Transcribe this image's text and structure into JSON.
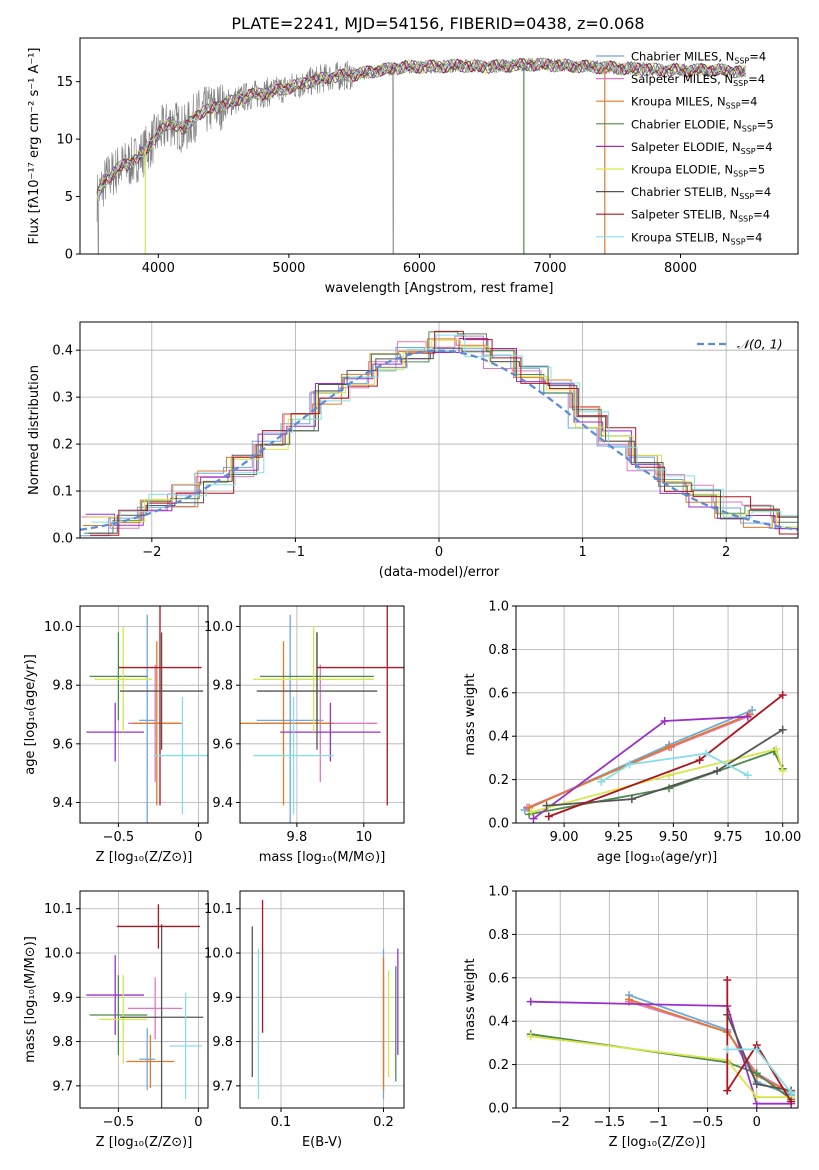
{
  "figure": {
    "title": "PLATE=2241, MJD=54156, FIBERID=0438, z=0.068"
  },
  "chart_data": [
    {
      "id": "spectrum",
      "type": "line",
      "title": "PLATE=2241, MJD=54156, FIBERID=0438, z=0.068",
      "xlabel": "wavelength [Angstrom, rest frame]",
      "ylabel": "Flux [fλ10⁻¹⁷ erg cm⁻² s⁻¹ A⁻¹]",
      "xlim": [
        3400,
        8900
      ],
      "ylim": [
        0,
        18.8
      ],
      "xticks": [
        4000,
        5000,
        6000,
        7000,
        8000
      ],
      "yticks": [
        0,
        5,
        10,
        15
      ],
      "grid": false,
      "legend_position": "top-right",
      "data_envelope": {
        "x": [
          3530,
          3600,
          3700,
          3800,
          3900,
          4000,
          4100,
          4200,
          4300,
          4500,
          4700,
          4900,
          5100,
          5300,
          5500,
          5700,
          5900,
          6100,
          6300,
          6500,
          6700,
          6900,
          7100,
          7300,
          7500,
          7700,
          7900,
          8100,
          8300,
          8500
        ],
        "y": [
          5.0,
          6.5,
          7.5,
          8.0,
          9.0,
          10.5,
          11.5,
          10.8,
          12.2,
          13.0,
          13.8,
          14.2,
          14.8,
          15.4,
          15.6,
          16.0,
          16.3,
          16.3,
          16.4,
          16.3,
          16.4,
          16.5,
          16.4,
          16.3,
          16.2,
          16.1,
          16.0,
          16.0,
          16.0,
          15.8
        ]
      },
      "series": [
        {
          "name": "Chabrier MILES, N_SSP=4",
          "color": "#6fa8dc"
        },
        {
          "name": "Salpeter MILES, N_SSP=4",
          "color": "#e377c2"
        },
        {
          "name": "Kroupa MILES, N_SSP=4",
          "color": "#e07b28"
        },
        {
          "name": "Chabrier ELODIE, N_SSP=5",
          "color": "#4d8a4d"
        },
        {
          "name": "Salpeter ELODIE, N_SSP=4",
          "color": "#9b30c9"
        },
        {
          "name": "Kroupa ELODIE, N_SSP=5",
          "color": "#d7e64a"
        },
        {
          "name": "Chabrier STELIB, N_SSP=4",
          "color": "#555555"
        },
        {
          "name": "Salpeter STELIB, N_SSP=4",
          "color": "#b0141e"
        },
        {
          "name": "Kroupa STELIB, N_SSP=4",
          "color": "#86dee8"
        }
      ]
    },
    {
      "id": "residuals",
      "type": "step",
      "xlabel": "(data-model)/error",
      "ylabel": "Normed distribution",
      "xlim": [
        -2.5,
        2.5
      ],
      "ylim": [
        0,
        0.46
      ],
      "xticks": [
        -2,
        -1,
        0,
        1,
        2
      ],
      "yticks": [
        0.0,
        0.1,
        0.2,
        0.3,
        0.4
      ],
      "grid": true,
      "legend_position": "top-right",
      "reference_curve": {
        "name": "𝒩(0, 1)",
        "mean": 0,
        "sigma": 1,
        "color": "#5b8bd9"
      },
      "bin_centers": [
        -2.4,
        -2.2,
        -2.0,
        -1.8,
        -1.6,
        -1.4,
        -1.2,
        -1.0,
        -0.8,
        -0.6,
        -0.4,
        -0.2,
        0.0,
        0.2,
        0.4,
        0.6,
        0.8,
        1.0,
        1.2,
        1.4,
        1.6,
        1.8,
        2.0,
        2.2,
        2.4
      ],
      "histogram_values": [
        0.03,
        0.045,
        0.075,
        0.09,
        0.12,
        0.155,
        0.205,
        0.245,
        0.31,
        0.34,
        0.37,
        0.395,
        0.415,
        0.41,
        0.385,
        0.345,
        0.315,
        0.255,
        0.21,
        0.16,
        0.12,
        0.09,
        0.065,
        0.045,
        0.03
      ]
    },
    {
      "id": "age-vs-Z",
      "type": "errorbar",
      "xlabel": "Z [log₁₀(Z/Z⊙)]",
      "ylabel": "age  [log₁₀(age/yr)]",
      "xlim": [
        -0.74,
        0.06
      ],
      "ylim": [
        9.33,
        10.07
      ],
      "xticks": [
        -0.5,
        0.0
      ],
      "yticks": [
        9.4,
        9.6,
        9.8,
        10.0
      ],
      "grid": true,
      "points": [
        {
          "color": "#6fa8dc",
          "x": -0.32,
          "xerr": 0.05,
          "y": 9.68,
          "yerr": 0.36
        },
        {
          "color": "#e377c2",
          "x": -0.27,
          "xerr": 0.17,
          "y": 9.67,
          "yerr": 0.2
        },
        {
          "color": "#e07b28",
          "x": -0.26,
          "xerr": 0.15,
          "y": 9.67,
          "yerr": 0.28
        },
        {
          "color": "#4d8a4d",
          "x": -0.5,
          "xerr": 0.18,
          "y": 9.83,
          "yerr": 0.15
        },
        {
          "color": "#9b30c9",
          "x": -0.52,
          "xerr": 0.18,
          "y": 9.64,
          "yerr": 0.1
        },
        {
          "color": "#d7e64a",
          "x": -0.47,
          "xerr": 0.18,
          "y": 9.82,
          "yerr": 0.18
        },
        {
          "color": "#555555",
          "x": -0.23,
          "xerr": 0.26,
          "y": 9.78,
          "yerr": 0.2
        },
        {
          "color": "#b0141e",
          "x": -0.24,
          "xerr": 0.26,
          "y": 9.86,
          "yerr": 0.47
        },
        {
          "color": "#86dee8",
          "x": -0.1,
          "xerr": 0.18,
          "y": 9.56,
          "yerr": 0.2
        }
      ]
    },
    {
      "id": "age-vs-mass",
      "type": "errorbar",
      "xlabel": "mass [log₁₀(M/M⊙)]",
      "ylabel": "",
      "xlim": [
        9.63,
        10.12
      ],
      "ylim": [
        9.33,
        10.07
      ],
      "xticks": [
        9.8,
        10.0
      ],
      "yticks": [
        9.4,
        9.6,
        9.8,
        10.0
      ],
      "grid": true,
      "points": [
        {
          "color": "#6fa8dc",
          "x": 9.78,
          "xerr": 0.1,
          "y": 9.68,
          "yerr": 0.36
        },
        {
          "color": "#e377c2",
          "x": 9.87,
          "xerr": 0.17,
          "y": 9.67,
          "yerr": 0.2
        },
        {
          "color": "#e07b28",
          "x": 9.76,
          "xerr": 0.15,
          "y": 9.67,
          "yerr": 0.28
        },
        {
          "color": "#4d8a4d",
          "x": 9.86,
          "xerr": 0.17,
          "y": 9.83,
          "yerr": 0.15
        },
        {
          "color": "#9b30c9",
          "x": 9.9,
          "xerr": 0.15,
          "y": 9.64,
          "yerr": 0.1
        },
        {
          "color": "#d7e64a",
          "x": 9.85,
          "xerr": 0.18,
          "y": 9.82,
          "yerr": 0.18
        },
        {
          "color": "#555555",
          "x": 9.86,
          "xerr": 0.18,
          "y": 9.78,
          "yerr": 0.2
        },
        {
          "color": "#b0141e",
          "x": 10.07,
          "xerr": 0.21,
          "y": 9.86,
          "yerr": 0.47
        },
        {
          "color": "#86dee8",
          "x": 9.79,
          "xerr": 0.12,
          "y": 9.56,
          "yerr": 0.2
        }
      ]
    },
    {
      "id": "mass-weight-vs-age",
      "type": "line",
      "xlabel": "age  [log₁₀(age/yr)]",
      "ylabel": "mass weight",
      "xlim": [
        8.78,
        10.07
      ],
      "ylim": [
        0,
        1
      ],
      "xticks": [
        9.0,
        9.25,
        9.5,
        9.75,
        10.0
      ],
      "xticklabels": [
        "9.00",
        "9.25",
        "9.50",
        "9.75",
        "10.00"
      ],
      "yticks": [
        0.0,
        0.2,
        0.4,
        0.6,
        0.8,
        1.0
      ],
      "grid": true,
      "series": [
        {
          "color": "#6fa8dc",
          "x": [
            8.82,
            9.48,
            9.86
          ],
          "y": [
            0.06,
            0.36,
            0.52
          ]
        },
        {
          "color": "#e377c2",
          "x": [
            8.83,
            9.49,
            9.84
          ],
          "y": [
            0.07,
            0.35,
            0.49
          ]
        },
        {
          "color": "#e07b28",
          "x": [
            8.84,
            9.48,
            9.85
          ],
          "y": [
            0.07,
            0.35,
            0.5
          ]
        },
        {
          "color": "#4d8a4d",
          "x": [
            8.84,
            9.48,
            9.96,
            10.0
          ],
          "y": [
            0.04,
            0.16,
            0.33,
            0.25
          ]
        },
        {
          "color": "#9b30c9",
          "x": [
            8.86,
            9.46,
            9.84
          ],
          "y": [
            0.02,
            0.47,
            0.49
          ]
        },
        {
          "color": "#d7e64a",
          "x": [
            8.85,
            9.48,
            9.97,
            10.0
          ],
          "y": [
            0.05,
            0.22,
            0.34,
            0.24
          ]
        },
        {
          "color": "#555555",
          "x": [
            8.92,
            9.31,
            9.7,
            10.0
          ],
          "y": [
            0.08,
            0.11,
            0.24,
            0.43
          ]
        },
        {
          "color": "#b0141e",
          "x": [
            8.93,
            9.62,
            10.0
          ],
          "y": [
            0.03,
            0.29,
            0.59
          ]
        },
        {
          "color": "#86dee8",
          "x": [
            9.17,
            9.3,
            9.65,
            9.84
          ],
          "y": [
            0.19,
            0.27,
            0.32,
            0.22
          ]
        }
      ]
    },
    {
      "id": "mass-vs-Z",
      "type": "errorbar",
      "xlabel": "Z [log₁₀(Z/Z⊙)]",
      "ylabel": "mass [log₁₀(M/M⊙)]",
      "xlim": [
        -0.74,
        0.06
      ],
      "ylim": [
        9.65,
        10.14
      ],
      "xticks": [
        -0.5,
        0.0
      ],
      "yticks": [
        9.7,
        9.8,
        9.9,
        10.0,
        10.1
      ],
      "grid": true,
      "points": [
        {
          "color": "#6fa8dc",
          "x": -0.32,
          "xerr": 0.05,
          "y": 9.76,
          "yerr": 0.07
        },
        {
          "color": "#e377c2",
          "x": -0.27,
          "xerr": 0.17,
          "y": 9.875,
          "yerr": 0.07
        },
        {
          "color": "#e07b28",
          "x": -0.3,
          "xerr": 0.15,
          "y": 9.755,
          "yerr": 0.06
        },
        {
          "color": "#4d8a4d",
          "x": -0.5,
          "xerr": 0.18,
          "y": 9.86,
          "yerr": 0.09
        },
        {
          "color": "#9b30c9",
          "x": -0.52,
          "xerr": 0.18,
          "y": 9.905,
          "yerr": 0.09
        },
        {
          "color": "#d7e64a",
          "x": -0.47,
          "xerr": 0.15,
          "y": 9.85,
          "yerr": 0.1
        },
        {
          "color": "#555555",
          "x": -0.23,
          "xerr": 0.26,
          "y": 9.855,
          "yerr": 0.21
        },
        {
          "color": "#b0141e",
          "x": -0.25,
          "xerr": 0.26,
          "y": 10.06,
          "yerr": 0.05
        },
        {
          "color": "#86dee8",
          "x": -0.08,
          "xerr": 0.1,
          "y": 9.79,
          "yerr": 0.12
        }
      ]
    },
    {
      "id": "mass-vs-ebv",
      "type": "errorbar",
      "xlabel": "E(B-V)",
      "ylabel": "",
      "xlim": [
        0.06,
        0.22
      ],
      "ylim": [
        9.65,
        10.14
      ],
      "xticks": [
        0.1,
        0.2
      ],
      "yticks": [
        9.7,
        9.8,
        9.9,
        10.0,
        10.1
      ],
      "grid": true,
      "points": [
        {
          "color": "#6fa8dc",
          "x": 0.2,
          "y": 9.84,
          "yerr": 0.17
        },
        {
          "color": "#e377c2",
          "x": 0.2,
          "y": 9.84,
          "yerr": 0.11
        },
        {
          "color": "#e07b28",
          "x": 0.2,
          "y": 9.84,
          "yerr": 0.15
        },
        {
          "color": "#4d8a4d",
          "x": 0.212,
          "y": 9.84,
          "yerr": 0.13
        },
        {
          "color": "#9b30c9",
          "x": 0.214,
          "y": 9.89,
          "yerr": 0.12
        },
        {
          "color": "#d7e64a",
          "x": 0.205,
          "y": 9.84,
          "yerr": 0.12
        },
        {
          "color": "#555555",
          "x": 0.072,
          "y": 9.89,
          "yerr": 0.17
        },
        {
          "color": "#b0141e",
          "x": 0.082,
          "y": 9.97,
          "yerr": 0.15
        },
        {
          "color": "#86dee8",
          "x": 0.078,
          "y": 9.84,
          "yerr": 0.17
        }
      ]
    },
    {
      "id": "mass-weight-vs-Z",
      "type": "line",
      "xlabel": "Z [log₁₀(Z/Z⊙)]",
      "ylabel": "mass weight",
      "xlim": [
        -2.45,
        0.42
      ],
      "ylim": [
        0,
        1
      ],
      "xticks": [
        -2.0,
        -1.5,
        -1.0,
        -0.5,
        0.0
      ],
      "yticks": [
        0.0,
        0.2,
        0.4,
        0.6,
        0.8,
        1.0
      ],
      "grid": true,
      "series": [
        {
          "color": "#6fa8dc",
          "x": [
            -1.3,
            -0.3,
            0.0,
            0.35
          ],
          "y": [
            0.52,
            0.36,
            0.12,
            0.06
          ]
        },
        {
          "color": "#e377c2",
          "x": [
            -1.3,
            -0.3,
            0.0,
            0.35
          ],
          "y": [
            0.49,
            0.35,
            0.16,
            0.07
          ]
        },
        {
          "color": "#e07b28",
          "x": [
            -1.3,
            -0.3,
            0.0,
            0.35
          ],
          "y": [
            0.5,
            0.35,
            0.15,
            0.07
          ]
        },
        {
          "color": "#4d8a4d",
          "x": [
            -2.3,
            -0.3,
            0.0,
            0.35
          ],
          "y": [
            0.34,
            0.21,
            0.16,
            0.04
          ]
        },
        {
          "color": "#9b30c9",
          "x": [
            -2.3,
            -0.3,
            0.0,
            0.35
          ],
          "y": [
            0.49,
            0.47,
            0.02,
            0.02
          ]
        },
        {
          "color": "#d7e64a",
          "x": [
            -2.3,
            -0.3,
            0.0,
            0.35
          ],
          "y": [
            0.33,
            0.22,
            0.05,
            0.05
          ]
        },
        {
          "color": "#555555",
          "x": [
            -0.3,
            0.0,
            0.35
          ],
          "y": [
            0.43,
            0.11,
            0.08
          ]
        },
        {
          "color": "#b0141e",
          "x": [
            -0.3,
            -0.3,
            0.0,
            0.35
          ],
          "y": [
            0.59,
            0.08,
            0.29,
            0.03
          ]
        },
        {
          "color": "#86dee8",
          "x": [
            -0.3,
            0.0,
            0.35
          ],
          "y": [
            0.27,
            0.27,
            0.07
          ]
        }
      ]
    }
  ]
}
